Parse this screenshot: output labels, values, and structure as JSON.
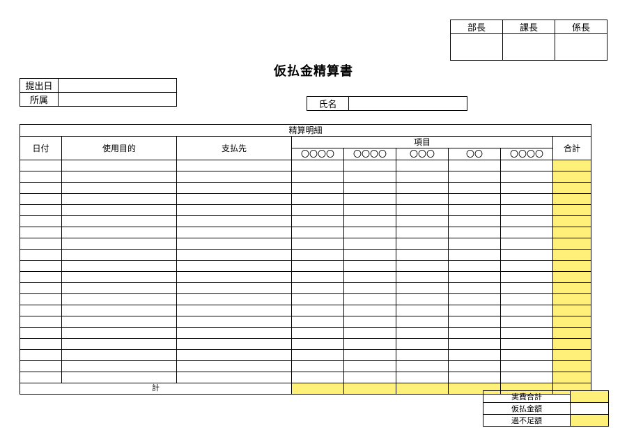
{
  "approval": {
    "headers": [
      "部長",
      "課長",
      "係長"
    ]
  },
  "title": "仮払金精算書",
  "meta": {
    "submit_date_label": "提出日",
    "submit_date_value": "",
    "dept_label": "所属",
    "dept_value": "",
    "name_label": "氏名",
    "name_value": ""
  },
  "detail": {
    "section_title": "精算明細",
    "col_date": "日付",
    "col_purpose": "使用目的",
    "col_payee": "支払先",
    "col_items_group": "項目",
    "col_items": [
      "〇〇〇〇",
      "〇〇〇〇",
      "〇〇〇",
      "〇〇",
      "〇〇〇〇"
    ],
    "col_total": "合計",
    "row_count": 20,
    "subtotal_label": "計"
  },
  "summary": {
    "actual_label": "実費合計",
    "advance_label": "仮払金額",
    "diff_label": "過不足額"
  },
  "colors": {
    "highlight": "#fff07a",
    "border": "#000000",
    "background": "#ffffff"
  }
}
